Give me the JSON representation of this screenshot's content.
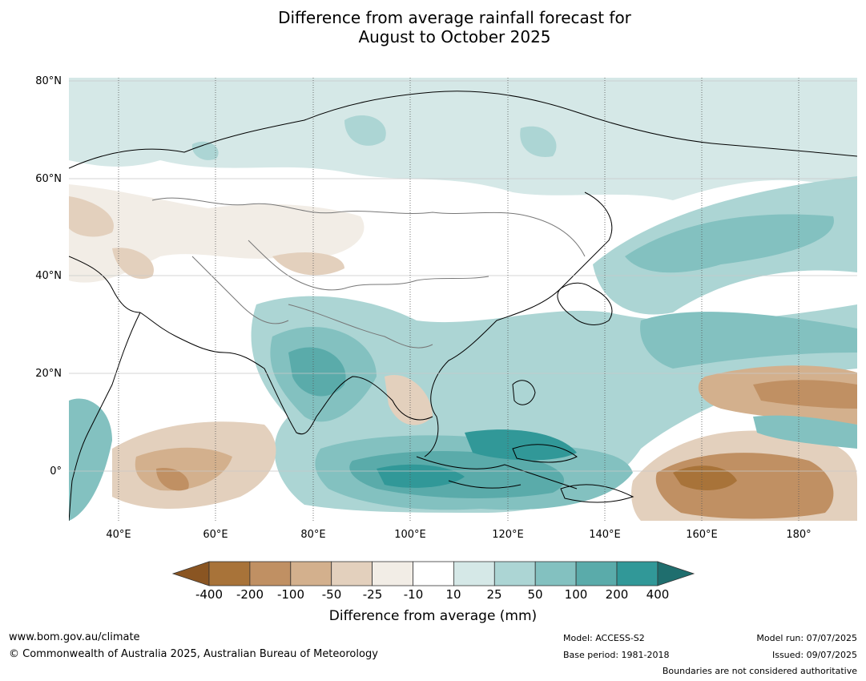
{
  "title_line1": "Difference from average rainfall forecast for",
  "title_line2": "August to October 2025",
  "lat_labels": [
    "80°N",
    "60°N",
    "40°N",
    "20°N",
    "0°"
  ],
  "lon_labels": [
    "40°E",
    "60°E",
    "80°E",
    "100°E",
    "120°E",
    "140°E",
    "160°E",
    "180°"
  ],
  "colorbar": {
    "labels": [
      "-400",
      "-200",
      "-100",
      "-50",
      "-25",
      "-10",
      "10",
      "25",
      "50",
      "100",
      "200",
      "400"
    ],
    "colors": [
      "#8a5522",
      "#a87339",
      "#c09063",
      "#d3b08d",
      "#e3d0bd",
      "#f2ede6",
      "#ffffff",
      "#d5e8e7",
      "#acd5d4",
      "#83c1c0",
      "#5aabaa",
      "#319898",
      "#1f6e6e"
    ],
    "title": "Difference from average (mm)"
  },
  "footer": {
    "url": "www.bom.gov.au/climate",
    "copyright": "© Commonwealth of Australia 2025, Australian Bureau of Meteorology",
    "model": "Model: ACCESS-S2",
    "base_period": "Base period: 1981-2018",
    "model_run": "Model run: 07/07/2025",
    "issued": "Issued: 09/07/2025",
    "disclaimer": "Boundaries are not considered authoritative"
  }
}
